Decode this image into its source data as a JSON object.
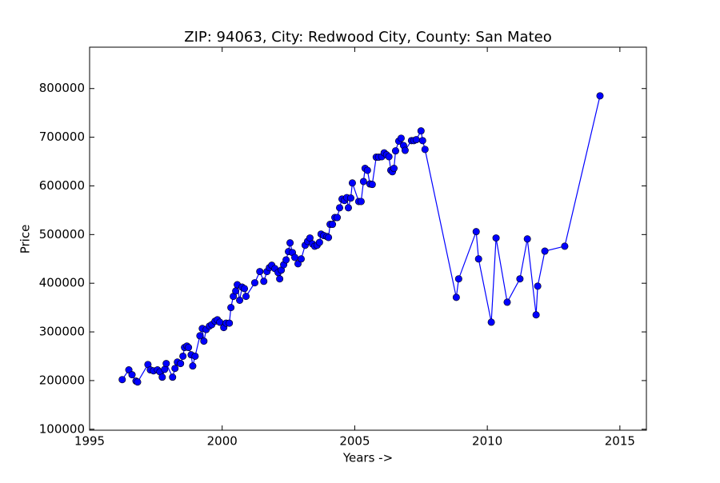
{
  "chart_data": {
    "type": "line",
    "title": "ZIP: 94063, City: Redwood City, County: San Mateo",
    "x_label": "Years ->",
    "y_label": "Price",
    "xlim": [
      1995,
      2016
    ],
    "ylim": [
      98000,
      885000
    ],
    "xticks": [
      1995,
      2000,
      2005,
      2010,
      2015
    ],
    "yticks": [
      100000,
      200000,
      300000,
      400000,
      500000,
      600000,
      700000,
      800000
    ],
    "grid": false,
    "series": [
      {
        "color": "#0000ff",
        "x": [
          1996.23,
          1996.48,
          1996.6,
          1996.75,
          1996.81,
          1997.2,
          1997.29,
          1997.41,
          1997.56,
          1997.65,
          1997.74,
          1997.83,
          1997.89,
          1998.13,
          1998.22,
          1998.31,
          1998.43,
          1998.52,
          1998.58,
          1998.67,
          1998.73,
          1998.83,
          1998.89,
          1998.98,
          1999.16,
          1999.25,
          1999.31,
          1999.4,
          1999.52,
          1999.61,
          1999.73,
          1999.82,
          1999.91,
          2000.06,
          2000.15,
          2000.27,
          2000.33,
          2000.42,
          2000.51,
          2000.57,
          2000.66,
          2000.75,
          2000.84,
          2000.9,
          2001.23,
          2001.42,
          2001.57,
          2001.69,
          2001.78,
          2001.87,
          2001.99,
          2002.11,
          2002.17,
          2002.23,
          2002.32,
          2002.41,
          2002.5,
          2002.56,
          2002.65,
          2002.74,
          2002.86,
          2002.98,
          2003.13,
          2003.22,
          2003.31,
          2003.4,
          2003.49,
          2003.58,
          2003.67,
          2003.73,
          2003.83,
          2003.95,
          2004.01,
          2004.07,
          2004.16,
          2004.25,
          2004.34,
          2004.43,
          2004.52,
          2004.61,
          2004.7,
          2004.76,
          2004.85,
          2004.91,
          2005.15,
          2005.24,
          2005.33,
          2005.39,
          2005.48,
          2005.57,
          2005.66,
          2005.81,
          2005.9,
          2006.02,
          2006.11,
          2006.2,
          2006.29,
          2006.36,
          2006.42,
          2006.48,
          2006.54,
          2006.66,
          2006.75,
          2006.84,
          2006.9,
          2007.14,
          2007.23,
          2007.32,
          2007.5,
          2007.56,
          2007.65,
          2008.83,
          2008.92,
          2009.58,
          2009.67,
          2010.15,
          2010.33,
          2010.75,
          2011.23,
          2011.51,
          2011.84,
          2011.9,
          2012.17,
          2012.92,
          2014.25
        ],
        "values": [
          202000,
          222000,
          212000,
          199000,
          197000,
          233000,
          222000,
          220000,
          222000,
          218000,
          207000,
          223000,
          235000,
          207000,
          225000,
          238000,
          235000,
          250000,
          268000,
          271000,
          268000,
          253000,
          230000,
          250000,
          292000,
          307000,
          281000,
          305000,
          312000,
          315000,
          322000,
          325000,
          320000,
          309000,
          318000,
          318000,
          350000,
          373000,
          384000,
          397000,
          365000,
          392000,
          389000,
          373000,
          401000,
          424000,
          404000,
          424000,
          432000,
          437000,
          430000,
          422000,
          409000,
          427000,
          438000,
          448000,
          465000,
          483000,
          463000,
          453000,
          440000,
          450000,
          478000,
          486000,
          493000,
          481000,
          476000,
          478000,
          484000,
          501000,
          498000,
          496000,
          494000,
          521000,
          521000,
          535000,
          535000,
          555000,
          573000,
          570000,
          576000,
          555000,
          575000,
          606000,
          568000,
          568000,
          609000,
          636000,
          632000,
          604000,
          603000,
          659000,
          659000,
          660000,
          668000,
          664000,
          660000,
          632000,
          629000,
          636000,
          672000,
          692000,
          698000,
          683000,
          673000,
          693000,
          693000,
          695000,
          713000,
          693000,
          675000,
          371000,
          409000,
          506000,
          450000,
          320000,
          493000,
          361000,
          409000,
          491000,
          335000,
          394000,
          466000,
          476000,
          785000
        ]
      }
    ]
  }
}
